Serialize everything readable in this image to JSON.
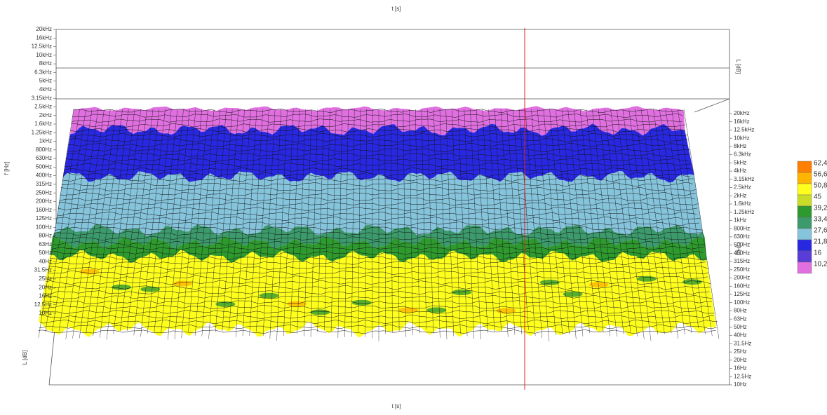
{
  "chart_data": {
    "type": "surface",
    "time_axis_title": "t [s]",
    "frequency_axis_title": "f [Hz]",
    "level_axis_title": "L [dB]",
    "frequency_ticks": [
      "20kHz",
      "16kHz",
      "12.5kHz",
      "10kHz",
      "8kHz",
      "6.3kHz",
      "5kHz",
      "4kHz",
      "3.15kHz",
      "2.5kHz",
      "2kHz",
      "1.6kHz",
      "1.25kHz",
      "1kHz",
      "800Hz",
      "630Hz",
      "500Hz",
      "400Hz",
      "315Hz",
      "250Hz",
      "200Hz",
      "160Hz",
      "125Hz",
      "100Hz",
      "80Hz",
      "63Hz",
      "50Hz",
      "40Hz",
      "31.5Hz",
      "25Hz",
      "20Hz",
      "16Hz",
      "12.5Hz",
      "10Hz"
    ],
    "colorbar": {
      "values": [
        62.4,
        56.6,
        50.8,
        45,
        39.2,
        33.4,
        27.6,
        21.8,
        16,
        10.2
      ],
      "value_labels": [
        "62,4",
        "56,6",
        "50,8",
        "45",
        "39,2",
        "33,4",
        "27,6",
        "21,8",
        "16",
        "10,2"
      ],
      "colors": [
        "#ff7f00",
        "#ffb400",
        "#ffff1e",
        "#c8dc28",
        "#2e9a2e",
        "#3c9a6c",
        "#86c4dc",
        "#2828e0",
        "#5a3cd6",
        "#e070e0"
      ]
    }
  }
}
